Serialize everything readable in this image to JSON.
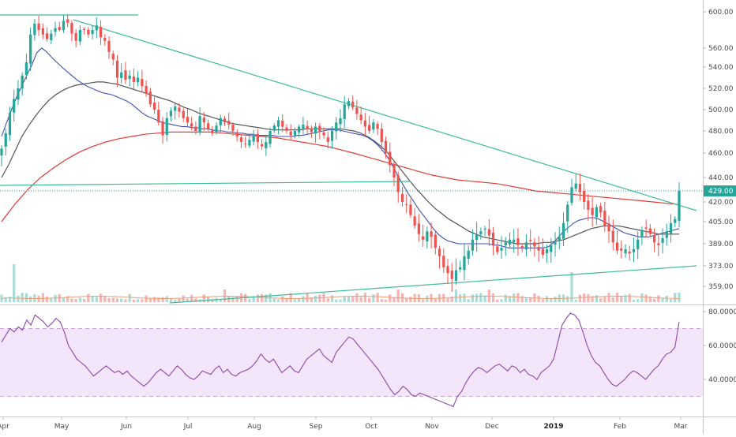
{
  "chart_data": [
    {
      "type": "candlestick",
      "price_axis": {
        "ticks": [
          600,
          560,
          540,
          520,
          500,
          480,
          460,
          440,
          420,
          405,
          389,
          373,
          359
        ],
        "tick_labels": [
          "600.00",
          "560.00",
          "540.00",
          "520.00",
          "500.00",
          "480.00",
          "460.00",
          "440.00",
          "420.00",
          "405.00",
          "389.00",
          "373.00",
          "359.00"
        ],
        "log_scale": true,
        "range": [
          352,
          612
        ]
      },
      "x_axis": {
        "labels": [
          "Apr",
          "May",
          "Jun",
          "Jul",
          "Aug",
          "Sep",
          "Oct",
          "Nov",
          "Dec",
          "2019",
          "Feb",
          "Mar"
        ],
        "bold_labels": [
          "2019"
        ]
      },
      "last_price": {
        "value": 429,
        "label": "429.00",
        "color": "#26a69a"
      },
      "closes": [
        464,
        478,
        497,
        510,
        520,
        532,
        545,
        575,
        587,
        580,
        575,
        570,
        576,
        582,
        580,
        590,
        588,
        576,
        568,
        580,
        580,
        575,
        580,
        585,
        572,
        568,
        556,
        548,
        530,
        535,
        528,
        532,
        526,
        530,
        522,
        515,
        505,
        500,
        488,
        476,
        492,
        499,
        503,
        498,
        492,
        488,
        484,
        480,
        494,
        488,
        482,
        478,
        485,
        492,
        488,
        486,
        480,
        475,
        470,
        468,
        472,
        476,
        470,
        466,
        470,
        480,
        485,
        490,
        484,
        480,
        476,
        480,
        484,
        486,
        482,
        479,
        484,
        480,
        476,
        470,
        480,
        488,
        492,
        505,
        508,
        502,
        496,
        490,
        484,
        480,
        488,
        482,
        470,
        460,
        450,
        440,
        428,
        420,
        418,
        410,
        402,
        396,
        392,
        398,
        394,
        386,
        380,
        372,
        368,
        364,
        370,
        372,
        380,
        384,
        392,
        396,
        398,
        400,
        395,
        388,
        383,
        386,
        390,
        392,
        392,
        388,
        386,
        390,
        391,
        387,
        384,
        381,
        385,
        388,
        390,
        394,
        404,
        418,
        432,
        435,
        428,
        420,
        414,
        410,
        416,
        412,
        402,
        398,
        390,
        384,
        384,
        385,
        382,
        385,
        392,
        399,
        400,
        396,
        390,
        388,
        393,
        398,
        404,
        407,
        429
      ],
      "ma_blue": [
        475,
        488,
        500,
        512,
        522,
        532,
        542,
        555,
        560,
        556,
        550,
        545,
        540,
        536,
        532,
        528,
        525,
        522,
        520,
        518,
        516,
        515,
        514,
        512,
        510,
        508,
        505,
        501,
        497,
        494,
        492,
        490,
        488,
        487,
        486,
        485,
        484,
        484,
        483,
        483,
        482,
        482,
        481,
        480,
        480,
        479,
        479,
        478,
        478,
        477,
        477,
        476,
        476,
        476,
        476,
        475,
        475,
        475,
        475,
        476,
        476,
        477,
        478,
        479,
        480,
        481,
        481,
        481,
        480,
        479,
        478,
        477,
        476,
        474,
        471,
        467,
        462,
        456,
        449,
        441,
        434,
        427,
        421,
        415,
        410,
        405,
        400,
        396,
        393,
        391,
        390,
        389,
        389,
        389,
        389,
        389,
        389,
        389,
        388,
        388,
        387,
        386,
        386,
        386,
        386,
        386,
        386,
        386,
        386,
        387,
        390,
        394,
        398,
        401,
        404,
        406,
        407,
        408,
        408,
        407,
        405,
        403,
        401,
        399,
        397,
        396,
        395,
        394,
        394,
        394,
        395,
        396,
        397,
        398,
        399,
        400
      ],
      "ma_black": [
        440,
        450,
        462,
        475,
        485,
        494,
        502,
        509,
        514,
        518,
        521,
        523,
        524,
        525,
        526,
        526,
        525,
        524,
        522,
        520,
        518,
        516,
        514,
        512,
        510,
        508,
        505,
        502,
        500,
        497,
        495,
        493,
        491,
        489,
        487,
        486,
        485,
        484,
        483,
        482,
        481,
        481,
        481,
        481,
        481,
        482,
        482,
        482,
        482,
        482,
        482,
        481,
        480,
        478,
        475,
        471,
        466,
        460,
        453,
        446,
        439,
        432,
        426,
        420,
        415,
        411,
        407,
        404,
        401,
        398,
        396,
        394,
        393,
        392,
        391,
        390,
        389,
        389,
        389,
        389,
        390,
        390,
        391,
        392,
        394,
        396,
        398,
        400,
        401,
        402,
        402,
        402,
        401,
        400,
        399,
        398,
        397,
        396,
        396,
        396,
        396
      ],
      "ma_red": [
        405,
        418,
        430,
        440,
        448,
        455,
        461,
        466,
        470,
        473,
        475,
        477,
        478,
        479,
        479,
        479,
        479,
        478,
        477,
        476,
        475,
        474,
        472,
        470,
        468,
        466,
        463,
        460,
        457,
        454,
        451,
        448,
        445,
        442,
        440,
        438,
        437,
        436,
        435,
        433,
        431,
        429,
        428,
        427,
        426,
        425,
        424,
        423,
        422,
        421,
        420,
        419,
        418
      ]
    },
    {
      "type": "line",
      "name": "rsi",
      "axis_ticks": [
        80,
        60,
        40
      ],
      "tick_labels": [
        "80.0000",
        "60.0000",
        "40.0000"
      ],
      "band": [
        70,
        30
      ],
      "range": [
        23,
        81
      ],
      "values": [
        62,
        66,
        70,
        68,
        71,
        69,
        75,
        72,
        78,
        76,
        74,
        71,
        73,
        76,
        74,
        68,
        60,
        56,
        52,
        50,
        48,
        45,
        42,
        44,
        46,
        48,
        46,
        44,
        45,
        43,
        45,
        42,
        40,
        38,
        36,
        38,
        41,
        44,
        46,
        44,
        42,
        45,
        48,
        46,
        43,
        41,
        40,
        42,
        45,
        44,
        43,
        46,
        48,
        44,
        46,
        43,
        42,
        44,
        45,
        46,
        48,
        51,
        55,
        52,
        50,
        52,
        48,
        44,
        46,
        48,
        45,
        44,
        48,
        52,
        54,
        56,
        58,
        54,
        52,
        50,
        56,
        59,
        62,
        65,
        64,
        61,
        58,
        55,
        52,
        49,
        46,
        42,
        38,
        34,
        31,
        33,
        36,
        34,
        31,
        30,
        32,
        31,
        30,
        29,
        28,
        27,
        26,
        25,
        24,
        30,
        33,
        38,
        42,
        45,
        47,
        46,
        44,
        46,
        48,
        49,
        47,
        45,
        48,
        47,
        44,
        46,
        43,
        42,
        40,
        44,
        46,
        48,
        52,
        62,
        72,
        76,
        79,
        78,
        75,
        68,
        60,
        54,
        50,
        48,
        44,
        40,
        37,
        36,
        38,
        40,
        43,
        45,
        44,
        42,
        40,
        43,
        46,
        48,
        52,
        55,
        56,
        59,
        74
      ]
    }
  ]
}
